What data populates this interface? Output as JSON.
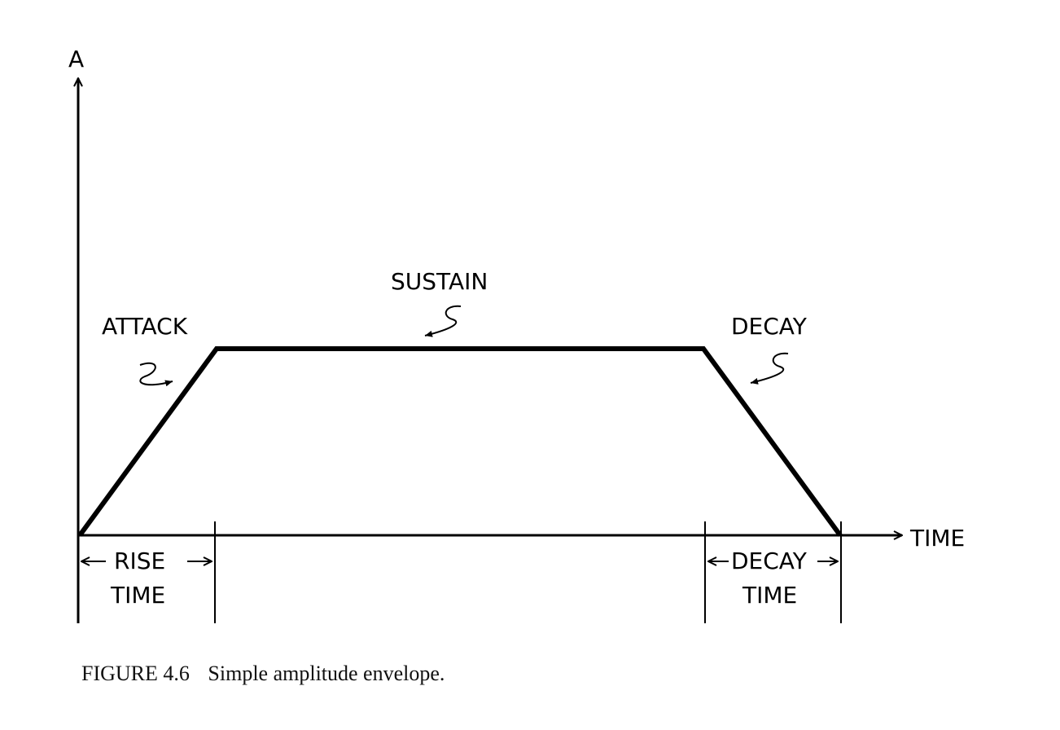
{
  "diagram": {
    "y_axis_label": "A",
    "x_axis_label": "TIME",
    "phases": {
      "attack": "ATTACK",
      "sustain": "SUSTAIN",
      "decay": "DECAY"
    },
    "durations": {
      "rise_line1": "RISE",
      "rise_line2": "TIME",
      "decay_line1": "DECAY",
      "decay_line2": "TIME"
    }
  },
  "caption": {
    "number": "FIGURE 4.6",
    "text": "Simple amplitude envelope."
  }
}
